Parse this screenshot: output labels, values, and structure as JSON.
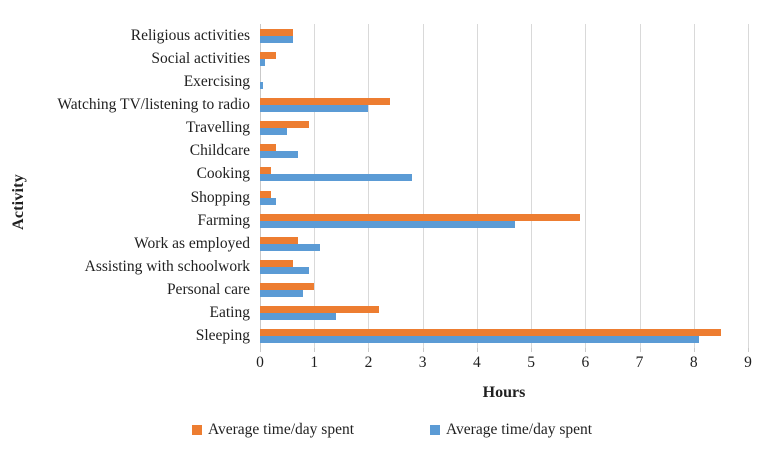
{
  "chart_data": {
    "type": "bar",
    "orientation": "horizontal",
    "title": "",
    "xlabel": "Hours",
    "ylabel": "Activity",
    "xlim": [
      0,
      9
    ],
    "xticks": [
      "0",
      "1",
      "2",
      "3",
      "4",
      "5",
      "6",
      "7",
      "8",
      "9"
    ],
    "grid": "vertical",
    "legend_position": "bottom",
    "categories": [
      "Religious activities",
      "Social activities",
      "Exercising",
      "Watching TV/listening to radio",
      "Travelling",
      "Childcare",
      "Cooking",
      "Shopping",
      "Farming",
      "Work as employed",
      "Assisting with schoolwork",
      "Personal care",
      "Eating",
      "Sleeping"
    ],
    "series": [
      {
        "name": "Average time/day spent",
        "color": "#ED7D31",
        "values": [
          0.6,
          0.3,
          0,
          2.4,
          0.9,
          0.3,
          0.2,
          0.2,
          5.9,
          0.7,
          0.6,
          1.0,
          2.2,
          8.5
        ]
      },
      {
        "name": "Average time/day spent",
        "color": "#5B9BD5",
        "values": [
          0.6,
          0.1,
          0.05,
          2.0,
          0.5,
          0.7,
          2.8,
          0.3,
          4.7,
          1.1,
          0.9,
          0.8,
          1.4,
          8.1
        ]
      }
    ],
    "colors": {
      "gridline": "#D9D9D9",
      "axis_text": "#1F1F1F"
    }
  }
}
